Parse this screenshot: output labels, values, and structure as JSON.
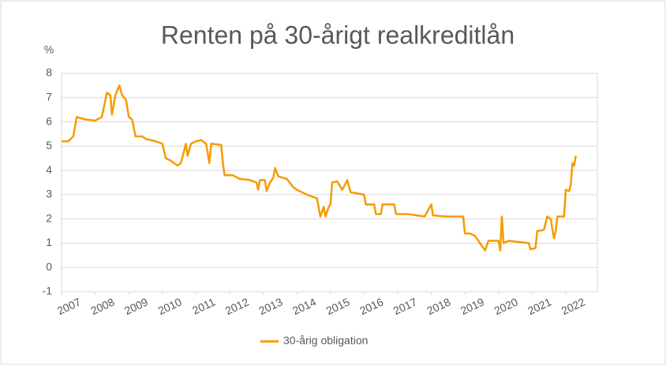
{
  "chart_data": {
    "type": "line",
    "title": "Renten på 30-årigt realkreditlån",
    "y_label": "%",
    "x": [
      2007.0,
      2007.2,
      2007.35,
      2007.45,
      2007.7,
      2008.0,
      2008.2,
      2008.35,
      2008.45,
      2008.5,
      2008.6,
      2008.72,
      2008.8,
      2008.92,
      2009.0,
      2009.1,
      2009.2,
      2009.4,
      2009.5,
      2009.8,
      2010.0,
      2010.1,
      2010.25,
      2010.45,
      2010.55,
      2010.7,
      2010.75,
      2010.85,
      2011.0,
      2011.15,
      2011.3,
      2011.4,
      2011.45,
      2011.75,
      2011.8,
      2011.85,
      2012.1,
      2012.3,
      2012.6,
      2012.8,
      2012.85,
      2012.9,
      2013.05,
      2013.1,
      2013.2,
      2013.3,
      2013.35,
      2013.45,
      2013.7,
      2013.9,
      2014.0,
      2014.3,
      2014.6,
      2014.7,
      2014.8,
      2014.85,
      2014.95,
      2015.0,
      2015.05,
      2015.2,
      2015.35,
      2015.5,
      2015.6,
      2016.0,
      2016.05,
      2016.3,
      2016.35,
      2016.5,
      2016.55,
      2016.9,
      2016.95,
      2017.3,
      2017.8,
      2018.0,
      2018.05,
      2018.4,
      2018.95,
      2019.0,
      2019.15,
      2019.3,
      2019.5,
      2019.6,
      2019.7,
      2019.9,
      2020.0,
      2020.05,
      2020.1,
      2020.15,
      2020.3,
      2020.6,
      2020.9,
      2020.95,
      2021.1,
      2021.15,
      2021.35,
      2021.45,
      2021.55,
      2021.65,
      2021.7,
      2021.75,
      2021.95,
      2022.0,
      2022.1,
      2022.15,
      2022.2,
      2022.25,
      2022.3
    ],
    "series": [
      {
        "name": "30-årig obligation",
        "color": "#f59c00",
        "values": [
          5.2,
          5.2,
          5.4,
          6.2,
          6.1,
          6.05,
          6.2,
          7.2,
          7.1,
          6.3,
          7.1,
          7.5,
          7.1,
          6.9,
          6.2,
          6.1,
          5.4,
          5.4,
          5.3,
          5.2,
          5.1,
          4.5,
          4.4,
          4.2,
          4.3,
          5.1,
          4.6,
          5.1,
          5.2,
          5.25,
          5.1,
          4.3,
          5.1,
          5.05,
          4.3,
          3.8,
          3.8,
          3.65,
          3.6,
          3.5,
          3.2,
          3.6,
          3.6,
          3.15,
          3.5,
          3.7,
          4.1,
          3.75,
          3.65,
          3.3,
          3.2,
          3.0,
          2.85,
          2.1,
          2.5,
          2.1,
          2.5,
          2.6,
          3.5,
          3.55,
          3.2,
          3.6,
          3.1,
          3.0,
          2.6,
          2.6,
          2.2,
          2.2,
          2.6,
          2.6,
          2.2,
          2.2,
          2.1,
          2.6,
          2.15,
          2.1,
          2.1,
          1.4,
          1.4,
          1.3,
          0.9,
          0.7,
          1.1,
          1.1,
          1.1,
          0.7,
          2.1,
          1.0,
          1.1,
          1.05,
          1.0,
          0.75,
          0.8,
          1.5,
          1.55,
          2.1,
          2.0,
          1.2,
          1.5,
          2.1,
          2.1,
          3.2,
          3.15,
          3.4,
          4.3,
          4.2,
          4.6
        ]
      }
    ],
    "xlim": [
      2007.0,
      2022.94
    ],
    "xticks": [
      2007,
      2008,
      2009,
      2010,
      2011,
      2012,
      2013,
      2014,
      2015,
      2016,
      2017,
      2018,
      2019,
      2020,
      2021,
      2022
    ],
    "ylim": [
      -1,
      8
    ],
    "yticks": [
      -1,
      0,
      1,
      2,
      3,
      4,
      5,
      6,
      7,
      8
    ],
    "grid": true,
    "legend": "bottom"
  }
}
